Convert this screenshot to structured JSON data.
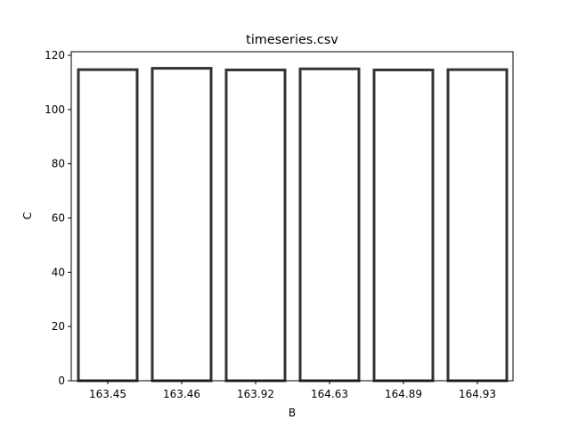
{
  "chart_data": {
    "type": "bar",
    "title": "timeseries.csv",
    "xlabel": "B",
    "ylabel": "C",
    "categories": [
      "163.45",
      "163.46",
      "163.92",
      "164.63",
      "164.89",
      "164.93"
    ],
    "values": [
      114.7,
      115.2,
      114.6,
      115.0,
      114.6,
      114.7
    ],
    "ylim": [
      0,
      120
    ],
    "yticks": [
      0,
      20,
      40,
      60,
      80,
      100,
      120
    ],
    "grid": false,
    "legend": "none",
    "bar_fill": "#ffffff",
    "bar_edge": "#333333",
    "axis_color": "#000000"
  }
}
